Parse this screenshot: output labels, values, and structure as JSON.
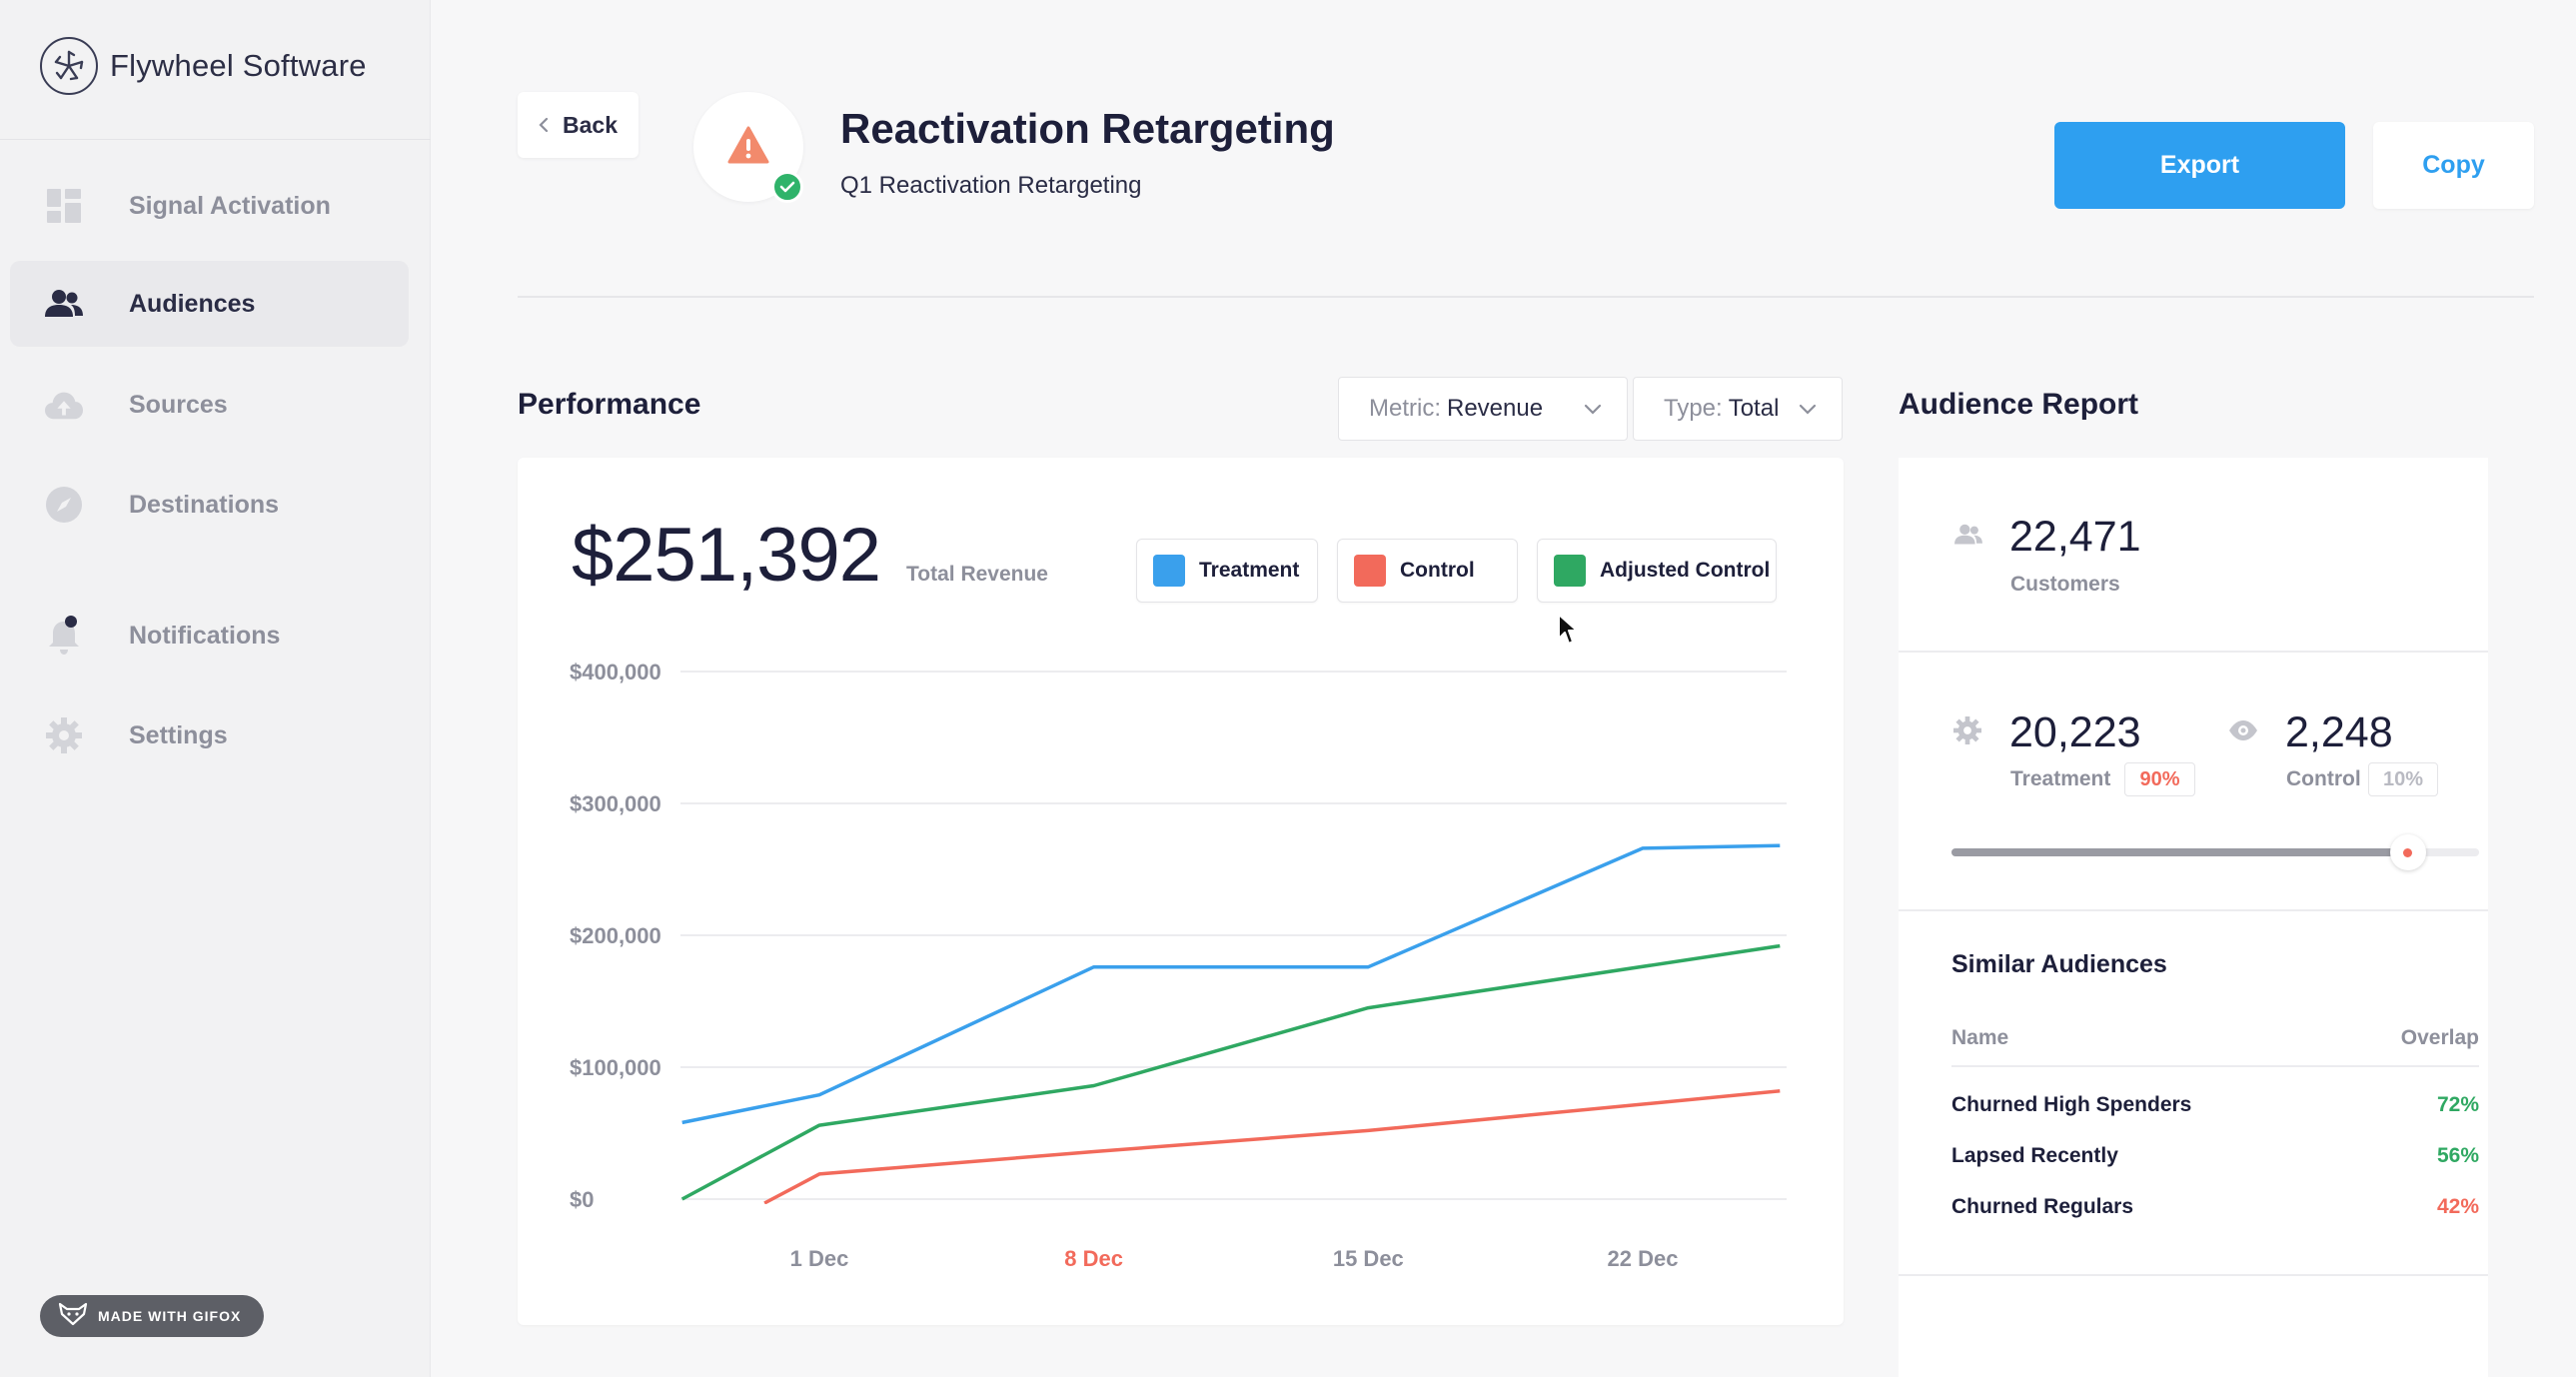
{
  "brand": {
    "name": "Flywheel Software"
  },
  "sidebar": {
    "items": [
      {
        "label": "Signal Activation",
        "icon": "dashboard-grid-icon",
        "active": false
      },
      {
        "label": "Audiences",
        "icon": "people-icon",
        "active": true
      },
      {
        "label": "Sources",
        "icon": "cloud-upload-icon",
        "active": false
      },
      {
        "label": "Destinations",
        "icon": "compass-icon",
        "active": false
      },
      {
        "label": "Notifications",
        "icon": "bell-icon",
        "active": false
      },
      {
        "label": "Settings",
        "icon": "gear-icon",
        "active": false
      }
    ],
    "badge": "MADE WITH GIFOX"
  },
  "header": {
    "back_label": "Back",
    "title": "Reactivation Retargeting",
    "subtitle": "Q1 Reactivation Retargeting",
    "export_label": "Export",
    "copy_label": "Copy"
  },
  "performance": {
    "title": "Performance",
    "metric_key": "Metric:",
    "metric_value": "Revenue",
    "type_key": "Type:",
    "type_value": "Total",
    "total_value": "$251,392",
    "total_caption": "Total Revenue",
    "legend": [
      {
        "label": "Treatment",
        "color": "#3aa0ec"
      },
      {
        "label": "Control",
        "color": "#f26a5b"
      },
      {
        "label": "Adjusted Control",
        "color": "#2fa862"
      }
    ]
  },
  "chart_data": {
    "type": "line",
    "x": [
      "1 Dec",
      "8 Dec",
      "15 Dec",
      "22 Dec"
    ],
    "highlight_x_label": "8 Dec",
    "ylim": [
      0,
      400000
    ],
    "yticks": [
      "$400,000",
      "$300,000",
      "$200,000",
      "$100,000",
      "$0"
    ],
    "ytick_values": [
      400000,
      300000,
      200000,
      100000,
      0
    ],
    "grid": true,
    "series": [
      {
        "name": "Treatment",
        "color": "#3aa0ec",
        "points": [
          [
            0.5,
            58000
          ],
          [
            1,
            79000
          ],
          [
            2,
            176000
          ],
          [
            3,
            176000
          ],
          [
            4,
            266000
          ],
          [
            4.5,
            268000
          ]
        ]
      },
      {
        "name": "Control",
        "color": "#f26a5b",
        "points": [
          [
            0.8,
            -3000
          ],
          [
            1,
            19000
          ],
          [
            2,
            36000
          ],
          [
            3,
            52000
          ],
          [
            4.5,
            82000
          ]
        ]
      },
      {
        "name": "Adjusted Control",
        "color": "#2fa862",
        "points": [
          [
            0.5,
            0
          ],
          [
            1,
            56000
          ],
          [
            2,
            86000
          ],
          [
            3,
            145000
          ],
          [
            4.5,
            192000
          ]
        ]
      }
    ]
  },
  "report": {
    "title": "Audience Report",
    "customers_value": "22,471",
    "customers_label": "Customers",
    "treatment_value": "20,223",
    "treatment_label": "Treatment",
    "treatment_pct": "90%",
    "control_value": "2,248",
    "control_label": "Control",
    "control_pct": "10%",
    "split_fraction": 0.865,
    "similar_title": "Similar Audiences",
    "col_name": "Name",
    "col_overlap": "Overlap",
    "similar": [
      {
        "name": "Churned High Spenders",
        "overlap": "72%",
        "color": "#2fa862"
      },
      {
        "name": "Lapsed Recently",
        "overlap": "56%",
        "color": "#2fa862"
      },
      {
        "name": "Churned Regulars",
        "overlap": "42%",
        "color": "#f26a5b"
      }
    ]
  }
}
